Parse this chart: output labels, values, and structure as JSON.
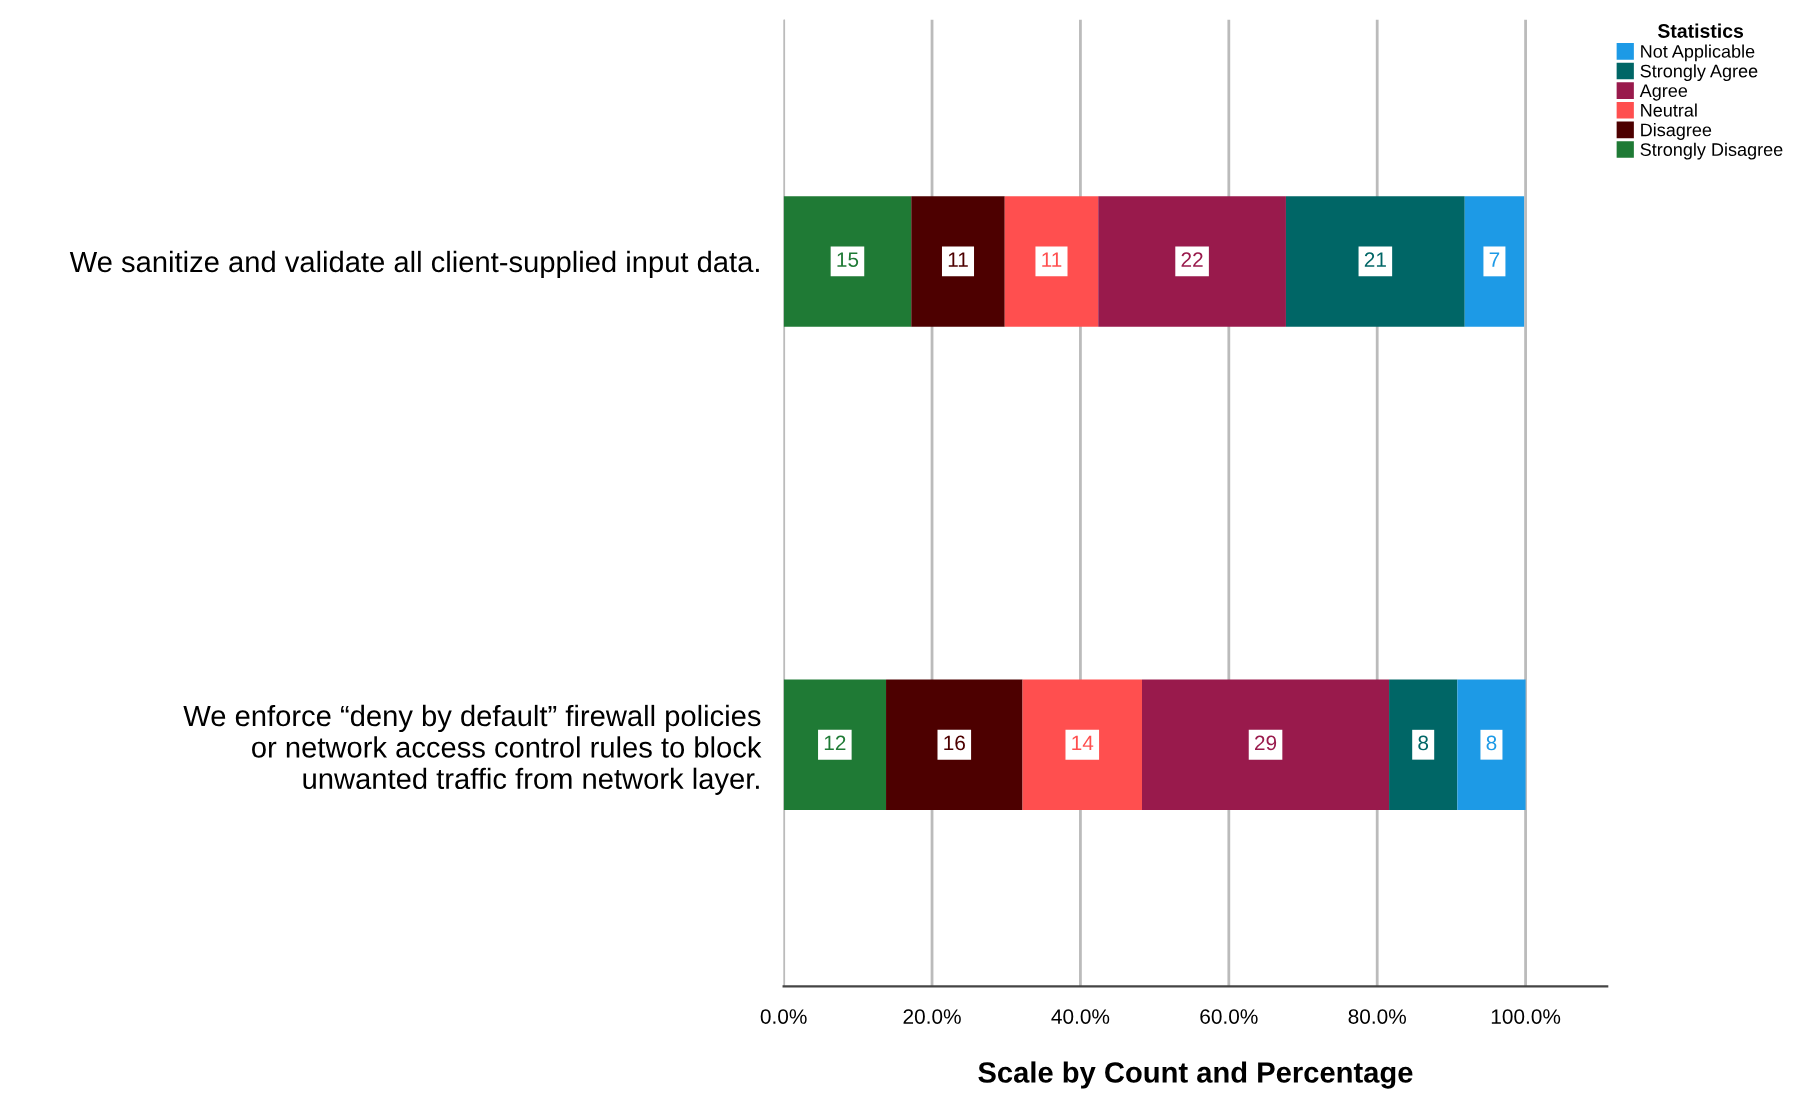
{
  "chart_data": {
    "type": "bar",
    "orientation": "horizontal",
    "stacked": true,
    "xlabel": "Scale by Count and Percentage",
    "legend_title": "Statistics",
    "categories": [
      "We sanitize and validate all client-supplied input data.",
      "We enforce “deny by default” firewall policies\nor network access control rules to block\nunwanted traffic from network layer."
    ],
    "series": [
      {
        "name": "Strongly Disagree",
        "color": "#1f7a35",
        "values": [
          17.2,
          13.8
        ]
      },
      {
        "name": "Disagree",
        "color": "#4d0000",
        "values": [
          12.6,
          18.4
        ]
      },
      {
        "name": "Neutral",
        "color": "#ff4f4f",
        "values": [
          12.6,
          16.1
        ]
      },
      {
        "name": "Agree",
        "color": "#991a4c",
        "values": [
          25.3,
          33.3
        ]
      },
      {
        "name": "Strongly Agree",
        "color": "#006666",
        "values": [
          24.1,
          9.2
        ]
      },
      {
        "name": "Not Applicable",
        "color": "#1d9ae6",
        "values": [
          8.0,
          9.2
        ]
      }
    ],
    "annotations": [
      "15",
      "12",
      "11",
      "16",
      "11",
      "14",
      "22",
      "29",
      "21",
      "8",
      "7",
      "8"
    ],
    "xlim": [
      0,
      111
    ],
    "xticks": [
      {
        "value": 0,
        "label": "0.0%"
      },
      {
        "value": 20,
        "label": "20.0%"
      },
      {
        "value": 40,
        "label": "40.0%"
      },
      {
        "value": 60,
        "label": "60.0%"
      },
      {
        "value": 80,
        "label": "80.0%"
      },
      {
        "value": 100,
        "label": "100.0%"
      }
    ],
    "grid": "x",
    "legend": "top right"
  }
}
